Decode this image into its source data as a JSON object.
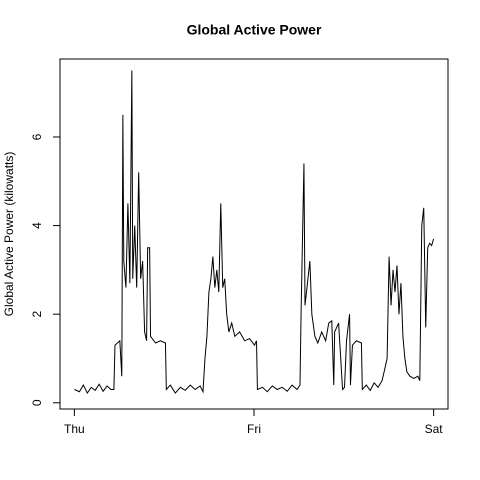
{
  "chart_data": {
    "type": "line",
    "title": "Global Active Power",
    "y_label": "Global Active Power (kilowatts)",
    "color": "#000000",
    "x": [
      0,
      0.028,
      0.05,
      0.072,
      0.094,
      0.116,
      0.138,
      0.16,
      0.182,
      0.204,
      0.22,
      0.226,
      0.253,
      0.264,
      0.27,
      0.275,
      0.287,
      0.298,
      0.309,
      0.32,
      0.325,
      0.336,
      0.347,
      0.358,
      0.369,
      0.38,
      0.391,
      0.402,
      0.408,
      0.419,
      0.424,
      0.452,
      0.479,
      0.507,
      0.512,
      0.534,
      0.562,
      0.59,
      0.617,
      0.645,
      0.672,
      0.7,
      0.716,
      0.727,
      0.738,
      0.749,
      0.76,
      0.771,
      0.782,
      0.793,
      0.804,
      0.815,
      0.826,
      0.837,
      0.848,
      0.86,
      0.876,
      0.893,
      0.92,
      0.948,
      0.975,
      1.003,
      1.014,
      1.019,
      1.047,
      1.074,
      1.102,
      1.129,
      1.157,
      1.185,
      1.212,
      1.24,
      1.256,
      1.262,
      1.278,
      1.284,
      1.295,
      1.311,
      1.322,
      1.339,
      1.355,
      1.377,
      1.399,
      1.416,
      1.433,
      1.444,
      1.449,
      1.471,
      1.493,
      1.504,
      1.515,
      1.532,
      1.537,
      1.548,
      1.57,
      1.598,
      1.603,
      1.625,
      1.647,
      1.669,
      1.691,
      1.713,
      1.73,
      1.741,
      1.752,
      1.763,
      1.774,
      1.785,
      1.796,
      1.807,
      1.818,
      1.829,
      1.84,
      1.851,
      1.868,
      1.89,
      1.912,
      1.923,
      1.934,
      1.945,
      1.956,
      1.967,
      1.978,
      1.989,
      2.0
    ],
    "values": [
      0.3,
      0.25,
      0.4,
      0.22,
      0.35,
      0.28,
      0.42,
      0.26,
      0.38,
      0.3,
      0.3,
      1.3,
      1.4,
      0.6,
      6.5,
      3.2,
      2.6,
      4.5,
      2.7,
      7.5,
      2.8,
      4.0,
      2.6,
      5.2,
      2.8,
      3.2,
      1.6,
      1.4,
      3.5,
      3.5,
      1.5,
      1.35,
      1.4,
      1.35,
      0.3,
      0.4,
      0.22,
      0.35,
      0.28,
      0.4,
      0.3,
      0.38,
      0.25,
      1.0,
      1.5,
      2.5,
      2.8,
      3.3,
      2.6,
      3.0,
      2.5,
      4.5,
      2.6,
      2.8,
      2.0,
      1.6,
      1.8,
      1.5,
      1.6,
      1.4,
      1.45,
      1.3,
      1.4,
      0.3,
      0.35,
      0.25,
      0.38,
      0.3,
      0.35,
      0.26,
      0.4,
      0.3,
      0.4,
      2.0,
      5.4,
      2.2,
      2.6,
      3.2,
      2.0,
      1.5,
      1.35,
      1.6,
      1.4,
      1.8,
      1.85,
      0.4,
      1.6,
      1.8,
      0.3,
      0.35,
      1.4,
      2.0,
      0.4,
      1.3,
      1.4,
      1.35,
      0.3,
      0.4,
      0.28,
      0.45,
      0.35,
      0.5,
      0.8,
      1.0,
      3.3,
      2.2,
      3.0,
      2.5,
      3.1,
      2.0,
      2.7,
      1.5,
      1.0,
      0.7,
      0.6,
      0.55,
      0.6,
      0.5,
      4.0,
      4.4,
      1.7,
      3.5,
      3.6,
      3.55,
      3.7
    ],
    "xlim": [
      -0.08,
      2.08
    ],
    "xticks": [
      {
        "value": 0,
        "label": "Thu"
      },
      {
        "value": 1,
        "label": "Fri"
      },
      {
        "value": 2,
        "label": "Sat"
      }
    ],
    "ylim": [
      -0.14,
      7.76
    ],
    "yticks": [
      0,
      2,
      4,
      6
    ]
  }
}
